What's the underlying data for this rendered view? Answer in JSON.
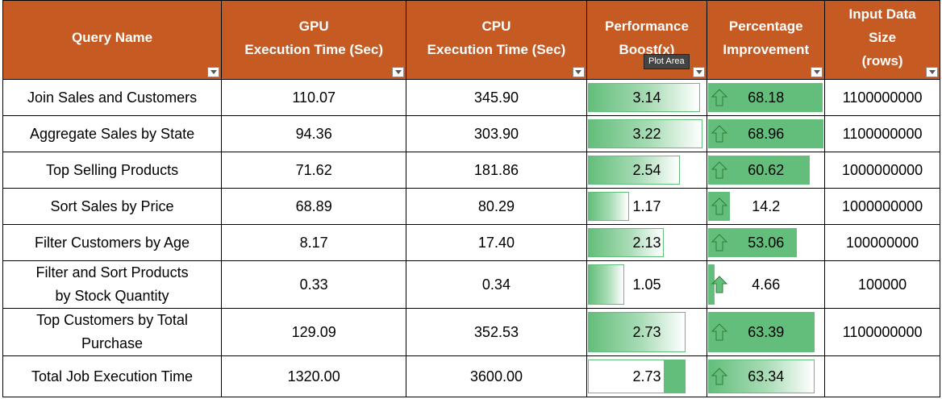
{
  "headers": {
    "query_name": "Query Name",
    "gpu_line1": "GPU",
    "gpu_line2": "Execution Time (Sec)",
    "cpu_line1": "CPU",
    "cpu_line2": "Execution Time (Sec)",
    "perf_line1": "Performance",
    "perf_line2": "Boost(x)",
    "pct_line1": "Percentage",
    "pct_line2": "Improvement",
    "input_line1": "Input Data",
    "input_line2": "Size",
    "input_line3": "(rows)"
  },
  "tooltip": "Plot Area",
  "rows": [
    {
      "query": "Join Sales and Customers",
      "gpu": "110.07",
      "cpu": "345.90",
      "boost": "3.14",
      "boost_fill": 0.95,
      "pct": "68.18",
      "pct_fill": 0.99,
      "rows": "1100000000"
    },
    {
      "query": "Aggregate Sales by State",
      "gpu": "94.36",
      "cpu": "303.90",
      "boost": "3.22",
      "boost_fill": 0.97,
      "pct": "68.96",
      "pct_fill": 1.0,
      "rows": "1100000000"
    },
    {
      "query": "Top Selling Products",
      "gpu": "71.62",
      "cpu": "181.86",
      "boost": "2.54",
      "boost_fill": 0.78,
      "pct": "60.62",
      "pct_fill": 0.88,
      "rows": "1000000000"
    },
    {
      "query": "Sort Sales by Price",
      "gpu": "68.89",
      "cpu": "80.29",
      "boost": "1.17",
      "boost_fill": 0.36,
      "pct": "14.2",
      "pct_fill": 0.2,
      "rows": "1000000000"
    },
    {
      "query": "Filter Customers by Age",
      "gpu": "8.17",
      "cpu": "17.40",
      "boost": "2.13",
      "boost_fill": 0.65,
      "pct": "53.06",
      "pct_fill": 0.77,
      "rows": "100000000"
    },
    {
      "query_line1": "Filter and Sort Products",
      "query_line2": "by Stock Quantity",
      "gpu": "0.33",
      "cpu": "0.34",
      "boost": "1.05",
      "boost_fill": 0.32,
      "pct": "4.66",
      "pct_fill": 0.07,
      "rows": "100000"
    },
    {
      "query_line1": "Top Customers by Total",
      "query_line2": "Purchase",
      "gpu": "129.09",
      "cpu": "352.53",
      "boost": "2.73",
      "boost_fill": 0.83,
      "pct": "63.39",
      "pct_fill": 0.92,
      "rows": "1100000000"
    },
    {
      "query": "Total Job Execution Time",
      "gpu": "1320.00",
      "cpu": "3600.00",
      "boost": "2.73",
      "boost_fill": 0.83,
      "pct": "63.34",
      "pct_fill": 0.92,
      "rows": ""
    }
  ],
  "colors": {
    "header_bg": "#c55a22",
    "databar": "#63be7b",
    "arrow": "#63be7b"
  },
  "icons": {
    "filter": "dropdown-filter-icon",
    "trend": "up-arrow-icon"
  }
}
